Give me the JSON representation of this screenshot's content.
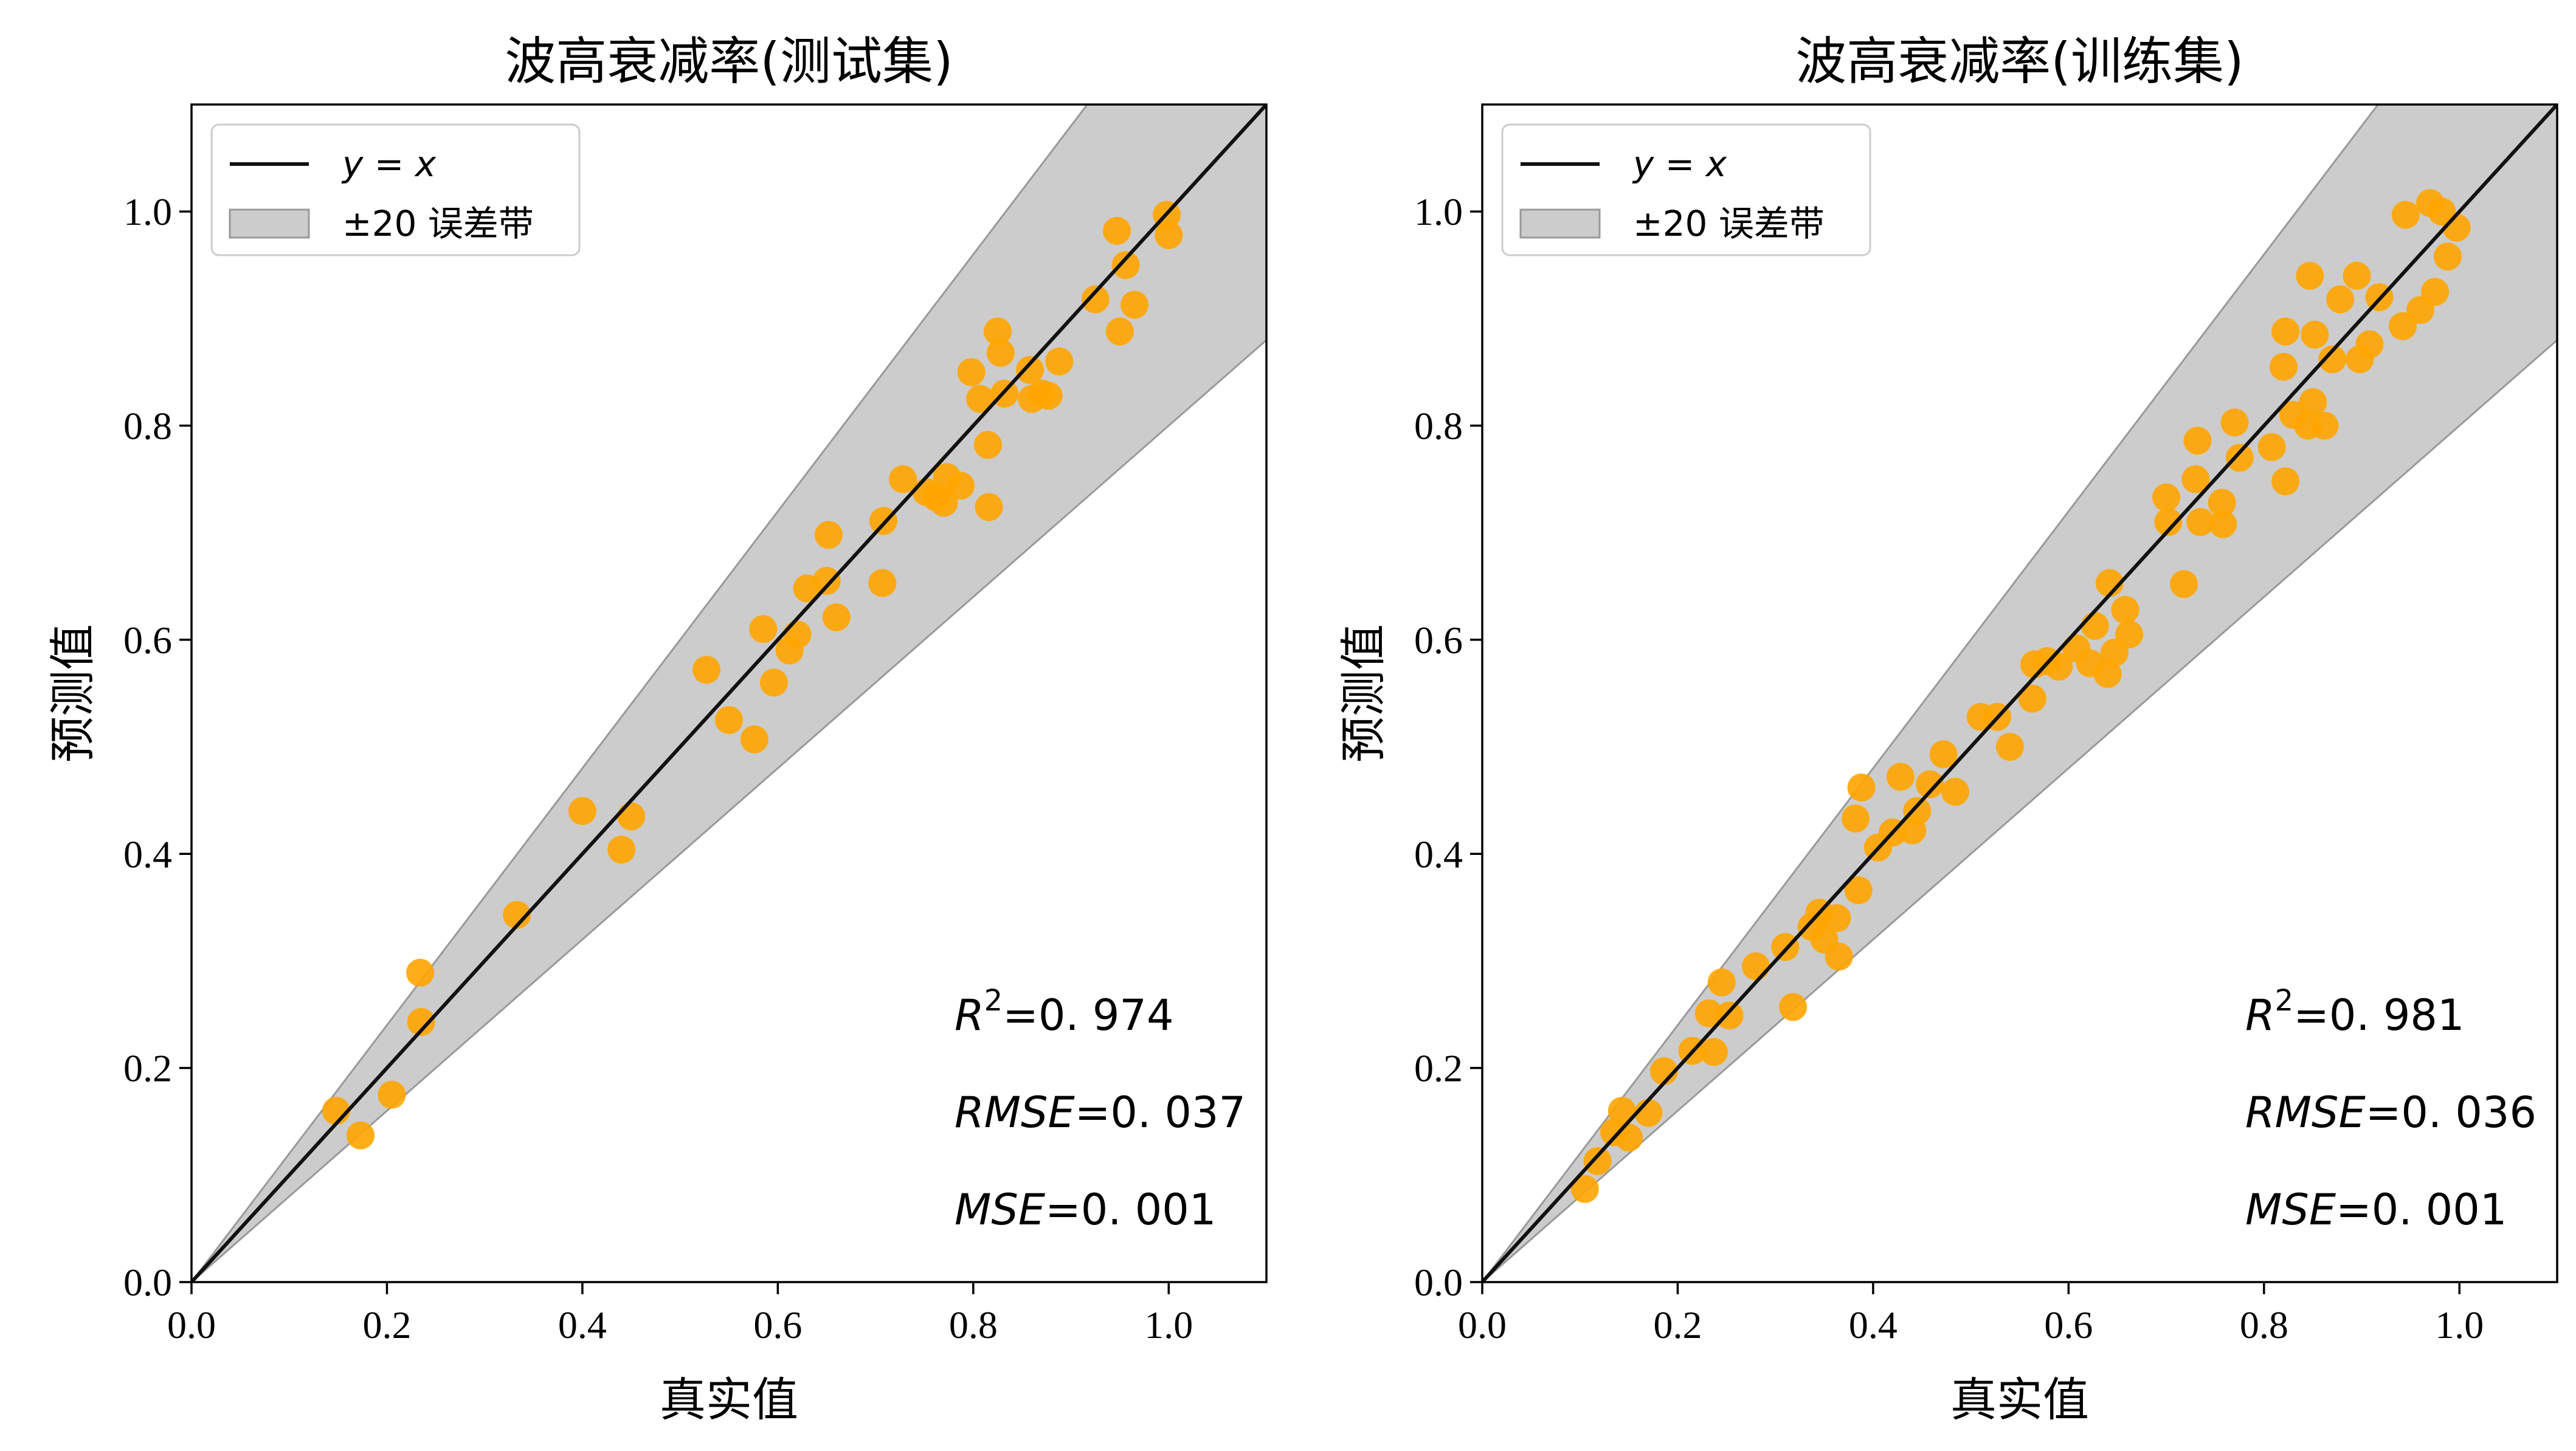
{
  "chart_data": [
    {
      "type": "scatter",
      "title": "波高衰减率(测试集)",
      "xlabel": "真实值",
      "ylabel": "预测值",
      "xlim": [
        0,
        1.1
      ],
      "ylim": [
        0,
        1.1
      ],
      "xticks": [
        "0.0",
        "0.2",
        "0.4",
        "0.6",
        "0.8",
        "1.0"
      ],
      "yticks": [
        "0.0",
        "0.2",
        "0.4",
        "0.6",
        "0.8",
        "1.0"
      ],
      "grid": false,
      "legend_position": "top-left",
      "legend": [
        {
          "kind": "line",
          "math": "y = x"
        },
        {
          "kind": "band",
          "label": "±20 误差带"
        }
      ],
      "reference_line": "y = x",
      "error_band_fraction": 0.2,
      "metrics": [
        {
          "name": "R",
          "sup": "2",
          "value": "=0. 974"
        },
        {
          "name": "RMSE",
          "sup": "",
          "value": "=0. 037"
        },
        {
          "name": "MSE",
          "sup": "",
          "value": "=0. 001"
        }
      ],
      "colors": {
        "points": "#ffa500",
        "line": "#111111",
        "band": "#cccccc"
      },
      "points": [
        [
          0.148,
          0.16
        ],
        [
          0.173,
          0.137
        ],
        [
          0.205,
          0.175
        ],
        [
          0.234,
          0.289
        ],
        [
          0.235,
          0.243
        ],
        [
          0.333,
          0.343
        ],
        [
          0.4,
          0.44
        ],
        [
          0.44,
          0.404
        ],
        [
          0.45,
          0.435
        ],
        [
          0.527,
          0.572
        ],
        [
          0.55,
          0.525
        ],
        [
          0.576,
          0.507
        ],
        [
          0.585,
          0.61
        ],
        [
          0.596,
          0.56
        ],
        [
          0.612,
          0.59
        ],
        [
          0.62,
          0.605
        ],
        [
          0.63,
          0.648
        ],
        [
          0.65,
          0.655
        ],
        [
          0.652,
          0.698
        ],
        [
          0.66,
          0.621
        ],
        [
          0.707,
          0.653
        ],
        [
          0.708,
          0.711
        ],
        [
          0.728,
          0.75
        ],
        [
          0.752,
          0.738
        ],
        [
          0.762,
          0.733
        ],
        [
          0.77,
          0.728
        ],
        [
          0.773,
          0.752
        ],
        [
          0.787,
          0.744
        ],
        [
          0.798,
          0.85
        ],
        [
          0.807,
          0.825
        ],
        [
          0.815,
          0.782
        ],
        [
          0.816,
          0.724
        ],
        [
          0.825,
          0.888
        ],
        [
          0.828,
          0.868
        ],
        [
          0.832,
          0.83
        ],
        [
          0.858,
          0.852
        ],
        [
          0.86,
          0.825
        ],
        [
          0.87,
          0.83
        ],
        [
          0.877,
          0.828
        ],
        [
          0.888,
          0.86
        ],
        [
          0.925,
          0.918
        ],
        [
          0.947,
          0.982
        ],
        [
          0.95,
          0.888
        ],
        [
          0.956,
          0.95
        ],
        [
          0.965,
          0.913
        ],
        [
          0.998,
          0.997
        ],
        [
          1.0,
          0.978
        ]
      ]
    },
    {
      "type": "scatter",
      "title": "波高衰减率(训练集)",
      "xlabel": "真实值",
      "ylabel": "预测值",
      "xlim": [
        0,
        1.1
      ],
      "ylim": [
        0,
        1.1
      ],
      "xticks": [
        "0.0",
        "0.2",
        "0.4",
        "0.6",
        "0.8",
        "1.0"
      ],
      "yticks": [
        "0.0",
        "0.2",
        "0.4",
        "0.6",
        "0.8",
        "1.0"
      ],
      "grid": false,
      "legend_position": "top-left",
      "legend": [
        {
          "kind": "line",
          "math": "y = x"
        },
        {
          "kind": "band",
          "label": "±20 误差带"
        }
      ],
      "reference_line": "y = x",
      "error_band_fraction": 0.2,
      "metrics": [
        {
          "name": "R",
          "sup": "2",
          "value": "=0. 981"
        },
        {
          "name": "RMSE",
          "sup": "",
          "value": "=0. 036"
        },
        {
          "name": "MSE",
          "sup": "",
          "value": "=0. 001"
        }
      ],
      "colors": {
        "points": "#ffa500",
        "line": "#111111",
        "band": "#cccccc"
      },
      "points": [
        [
          0.105,
          0.087
        ],
        [
          0.118,
          0.113
        ],
        [
          0.135,
          0.14
        ],
        [
          0.143,
          0.16
        ],
        [
          0.15,
          0.135
        ],
        [
          0.17,
          0.158
        ],
        [
          0.186,
          0.197
        ],
        [
          0.215,
          0.216
        ],
        [
          0.232,
          0.251
        ],
        [
          0.237,
          0.215
        ],
        [
          0.245,
          0.28
        ],
        [
          0.253,
          0.249
        ],
        [
          0.28,
          0.295
        ],
        [
          0.31,
          0.313
        ],
        [
          0.318,
          0.257
        ],
        [
          0.337,
          0.332
        ],
        [
          0.345,
          0.345
        ],
        [
          0.35,
          0.32
        ],
        [
          0.363,
          0.34
        ],
        [
          0.365,
          0.304
        ],
        [
          0.382,
          0.433
        ],
        [
          0.385,
          0.366
        ],
        [
          0.388,
          0.462
        ],
        [
          0.405,
          0.406
        ],
        [
          0.42,
          0.42
        ],
        [
          0.428,
          0.472
        ],
        [
          0.44,
          0.422
        ],
        [
          0.445,
          0.44
        ],
        [
          0.458,
          0.465
        ],
        [
          0.472,
          0.493
        ],
        [
          0.484,
          0.458
        ],
        [
          0.51,
          0.528
        ],
        [
          0.527,
          0.528
        ],
        [
          0.54,
          0.5
        ],
        [
          0.563,
          0.545
        ],
        [
          0.565,
          0.577
        ],
        [
          0.578,
          0.58
        ],
        [
          0.59,
          0.575
        ],
        [
          0.608,
          0.592
        ],
        [
          0.622,
          0.578
        ],
        [
          0.627,
          0.613
        ],
        [
          0.64,
          0.568
        ],
        [
          0.642,
          0.653
        ],
        [
          0.647,
          0.588
        ],
        [
          0.658,
          0.628
        ],
        [
          0.662,
          0.605
        ],
        [
          0.7,
          0.733
        ],
        [
          0.702,
          0.71
        ],
        [
          0.718,
          0.652
        ],
        [
          0.73,
          0.75
        ],
        [
          0.732,
          0.786
        ],
        [
          0.735,
          0.71
        ],
        [
          0.757,
          0.728
        ],
        [
          0.758,
          0.708
        ],
        [
          0.77,
          0.803
        ],
        [
          0.775,
          0.77
        ],
        [
          0.808,
          0.78
        ],
        [
          0.82,
          0.855
        ],
        [
          0.822,
          0.888
        ],
        [
          0.822,
          0.748
        ],
        [
          0.83,
          0.81
        ],
        [
          0.845,
          0.8
        ],
        [
          0.847,
          0.94
        ],
        [
          0.85,
          0.822
        ],
        [
          0.852,
          0.885
        ],
        [
          0.862,
          0.8
        ],
        [
          0.87,
          0.862
        ],
        [
          0.878,
          0.918
        ],
        [
          0.895,
          0.94
        ],
        [
          0.898,
          0.862
        ],
        [
          0.908,
          0.876
        ],
        [
          0.918,
          0.92
        ],
        [
          0.942,
          0.893
        ],
        [
          0.945,
          0.997
        ],
        [
          0.96,
          0.908
        ],
        [
          0.97,
          1.008
        ],
        [
          0.975,
          0.925
        ],
        [
          0.982,
          1.0
        ],
        [
          0.988,
          0.958
        ],
        [
          0.997,
          0.985
        ]
      ]
    }
  ]
}
